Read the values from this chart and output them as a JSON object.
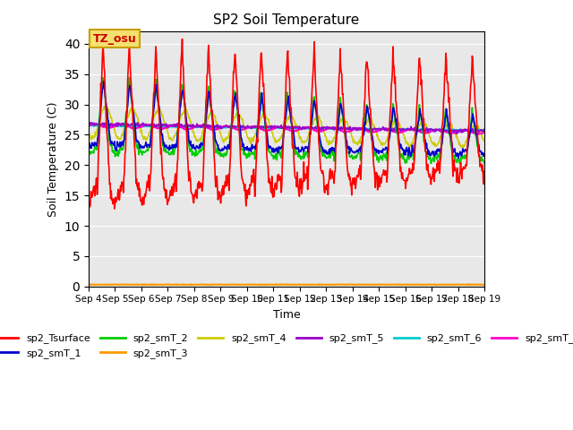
{
  "title": "SP2 Soil Temperature",
  "xlabel": "Time",
  "ylabel": "Soil Temperature (C)",
  "ylim": [
    0,
    42
  ],
  "yticks": [
    0,
    5,
    10,
    15,
    20,
    25,
    30,
    35,
    40
  ],
  "bg_color": "#e8e8e8",
  "annotation_text": "TZ_osu",
  "annotation_bg": "#f5e070",
  "annotation_border": "#c8a000",
  "series_colors": {
    "sp2_Tsurface": "#ff0000",
    "sp2_smT_1": "#0000cc",
    "sp2_smT_2": "#00cc00",
    "sp2_smT_3": "#ff9900",
    "sp2_smT_4": "#cccc00",
    "sp2_smT_5": "#9900cc",
    "sp2_smT_6": "#00cccc",
    "sp2_smT_7": "#ff00cc"
  },
  "n_days": 15,
  "start_day": 4,
  "figsize": [
    6.4,
    4.8
  ],
  "dpi": 100
}
